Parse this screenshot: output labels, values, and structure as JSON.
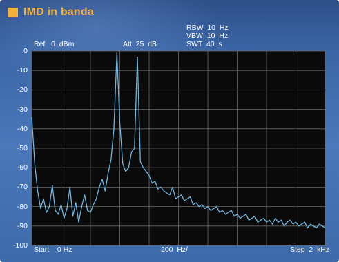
{
  "title": "IMD in banda",
  "ref_label": "Ref   0  dBm",
  "att_label": "Att  25  dB",
  "rbw_label": "RBW  10  Hz",
  "vbw_label": "VBW  10  Hz",
  "swt_label": "SWT  40  s",
  "start_label": "Start    0 Hz",
  "span_label": "200  Hz/",
  "step_label": "Step  2  kHz",
  "colors": {
    "title": "#f3b436",
    "trace": "#6fb6e0",
    "grid": "#6a6a6a",
    "plot_bg": "#0a0a0a"
  },
  "chart_data": {
    "type": "line",
    "ylim": [
      -100,
      0
    ],
    "yticks": [
      "0",
      "-10",
      "-20",
      "-30",
      "-40",
      "-50",
      "-60",
      "-70",
      "-80",
      "-90",
      "-100"
    ],
    "x_divisions": 10,
    "grid": true,
    "series": [
      {
        "values": [
          -34,
          -58,
          -72,
          -81,
          -76,
          -83,
          -80,
          -69,
          -82,
          -84,
          -79,
          -86,
          -81,
          -70,
          -85,
          -78,
          -88,
          -80,
          -74,
          -82,
          -83,
          -79,
          -76,
          -70,
          -66,
          -72,
          -63,
          -56,
          -40,
          -1,
          -37,
          -58,
          -62,
          -60,
          -52,
          -50,
          -3,
          -57,
          -60,
          -62,
          -64,
          -68,
          -67,
          -71,
          -70,
          -72,
          -73,
          -74,
          -70,
          -76,
          -75,
          -74,
          -77,
          -76,
          -75,
          -79,
          -78,
          -80,
          -79,
          -81,
          -80,
          -82,
          -81,
          -80,
          -83,
          -82,
          -84,
          -83,
          -82,
          -85,
          -84,
          -86,
          -85,
          -84,
          -87,
          -86,
          -85,
          -88,
          -87,
          -86,
          -88,
          -87,
          -89,
          -86,
          -88,
          -87,
          -90,
          -88,
          -87,
          -89,
          -88,
          -90,
          -89,
          -88,
          -91,
          -89,
          -90,
          -91,
          -89,
          -90,
          -91
        ]
      }
    ]
  }
}
